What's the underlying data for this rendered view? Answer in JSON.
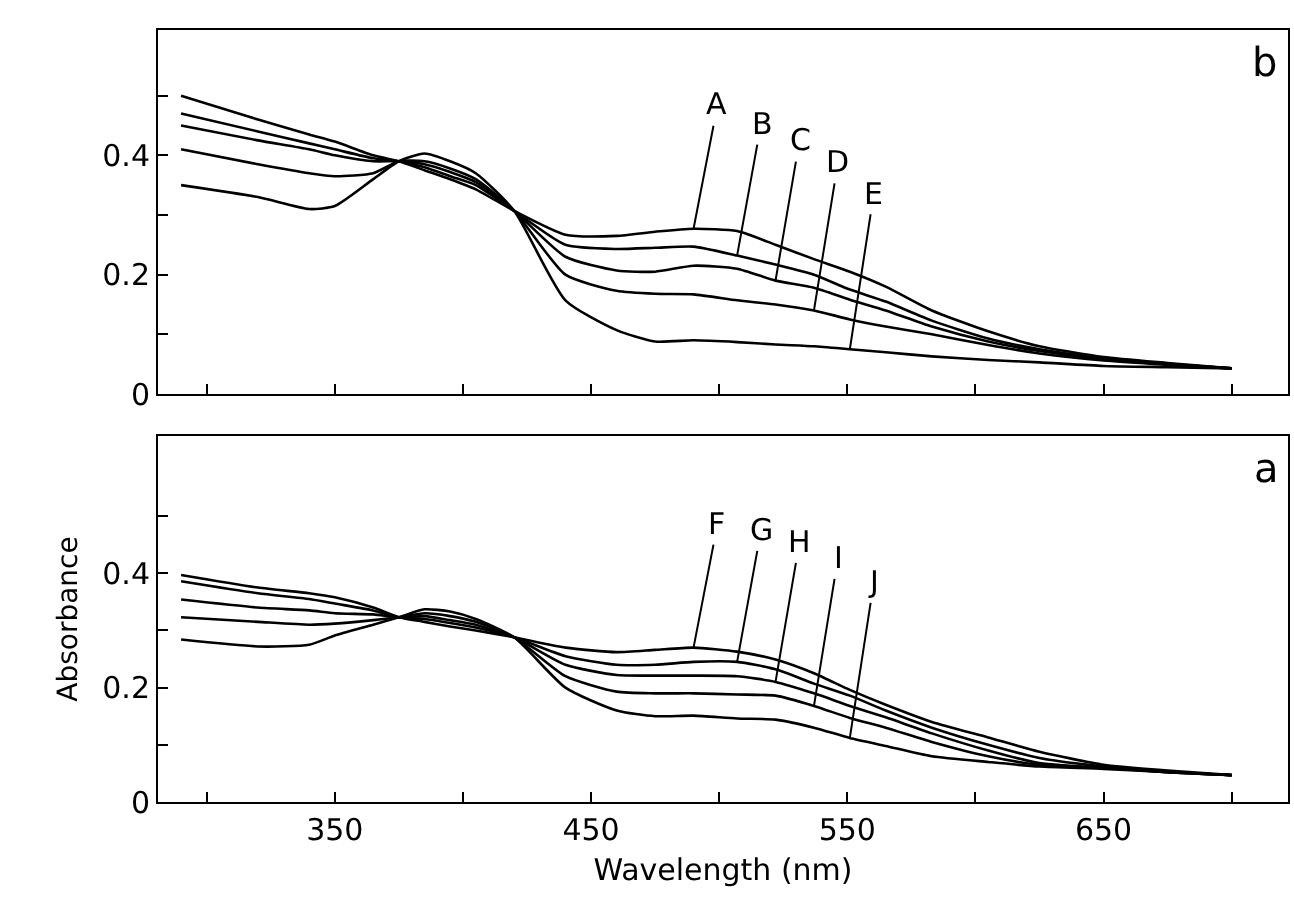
{
  "chart_data": [
    {
      "type": "line",
      "annotations": [
        "b",
        {
          "text": "A",
          "x": 490,
          "y": 0.277
        },
        {
          "text": "B",
          "x": 507,
          "y": 0.232
        },
        {
          "text": "C",
          "x": 522,
          "y": 0.19
        },
        {
          "text": "D",
          "x": 537,
          "y": 0.14
        },
        {
          "text": "E",
          "x": 551,
          "y": 0.075
        }
      ],
      "x": [
        290,
        320,
        340,
        350,
        365,
        375,
        385,
        395,
        405,
        420,
        440,
        460,
        475,
        490,
        507,
        522,
        537,
        551,
        565,
        583,
        605,
        625,
        650,
        675,
        700
      ],
      "series": [
        {
          "color": "#000000",
          "values": [
            0.5,
            0.46,
            0.435,
            0.423,
            0.4,
            0.39,
            0.375,
            0.36,
            0.343,
            0.307,
            0.267,
            0.265,
            0.272,
            0.277,
            0.273,
            0.25,
            0.226,
            0.205,
            0.18,
            0.14,
            0.105,
            0.08,
            0.062,
            0.052,
            0.043
          ]
        },
        {
          "color": "#000000",
          "values": [
            0.47,
            0.44,
            0.42,
            0.41,
            0.395,
            0.39,
            0.38,
            0.365,
            0.35,
            0.307,
            0.25,
            0.243,
            0.245,
            0.247,
            0.232,
            0.217,
            0.2,
            0.175,
            0.155,
            0.123,
            0.093,
            0.075,
            0.06,
            0.05,
            0.043
          ]
        },
        {
          "color": "#000000",
          "values": [
            0.45,
            0.425,
            0.41,
            0.4,
            0.39,
            0.39,
            0.385,
            0.372,
            0.355,
            0.307,
            0.23,
            0.207,
            0.205,
            0.215,
            0.21,
            0.19,
            0.178,
            0.158,
            0.14,
            0.113,
            0.088,
            0.072,
            0.058,
            0.05,
            0.043
          ]
        },
        {
          "color": "#000000",
          "values": [
            0.41,
            0.385,
            0.37,
            0.365,
            0.37,
            0.39,
            0.39,
            0.378,
            0.36,
            0.307,
            0.2,
            0.173,
            0.168,
            0.167,
            0.157,
            0.15,
            0.14,
            0.125,
            0.113,
            0.1,
            0.082,
            0.068,
            0.056,
            0.049,
            0.043
          ]
        },
        {
          "color": "#000000",
          "values": [
            0.35,
            0.33,
            0.31,
            0.315,
            0.36,
            0.39,
            0.403,
            0.39,
            0.37,
            0.307,
            0.157,
            0.107,
            0.088,
            0.09,
            0.087,
            0.083,
            0.08,
            0.075,
            0.07,
            0.063,
            0.057,
            0.053,
            0.047,
            0.045,
            0.043
          ]
        }
      ],
      "xlim": [
        281,
        722
      ],
      "ylim": [
        0,
        0.61
      ],
      "xticks": [
        {
          "value": 300,
          "label": null
        },
        350,
        {
          "value": 400,
          "label": null
        },
        450,
        {
          "value": 500,
          "label": null
        },
        550,
        {
          "value": 600,
          "label": null
        },
        650,
        {
          "value": 700,
          "label": null
        }
      ],
      "yticks": [
        0,
        {
          "value": 0.1,
          "label": null
        },
        0.2,
        {
          "value": 0.3,
          "label": null
        },
        0.4,
        {
          "value": 0.5,
          "label": null
        }
      ],
      "tick_labels": "y",
      "grid": false,
      "marker": "none",
      "line_style": "solid"
    },
    {
      "type": "line",
      "xlabel": "Wavelength (nm)",
      "ylabel": "Absorbance",
      "annotations": [
        "a",
        {
          "text": "F",
          "x": 490,
          "y": 0.27
        },
        {
          "text": "G",
          "x": 507,
          "y": 0.245
        },
        {
          "text": "H",
          "x": 522,
          "y": 0.21
        },
        {
          "text": "I",
          "x": 537,
          "y": 0.168
        },
        {
          "text": "J",
          "x": 551,
          "y": 0.112
        }
      ],
      "x": [
        290,
        320,
        340,
        350,
        365,
        375,
        385,
        395,
        405,
        420,
        440,
        460,
        475,
        490,
        507,
        522,
        537,
        551,
        565,
        583,
        605,
        625,
        650,
        675,
        700
      ],
      "series": [
        {
          "color": "#000000",
          "values": [
            0.397,
            0.375,
            0.365,
            0.358,
            0.34,
            0.323,
            0.315,
            0.307,
            0.3,
            0.288,
            0.27,
            0.262,
            0.266,
            0.27,
            0.263,
            0.249,
            0.225,
            0.196,
            0.17,
            0.14,
            0.113,
            0.088,
            0.065,
            0.055,
            0.047
          ]
        },
        {
          "color": "#000000",
          "values": [
            0.386,
            0.365,
            0.355,
            0.347,
            0.335,
            0.323,
            0.32,
            0.313,
            0.305,
            0.288,
            0.255,
            0.24,
            0.24,
            0.245,
            0.245,
            0.232,
            0.207,
            0.186,
            0.16,
            0.13,
            0.1,
            0.077,
            0.062,
            0.053,
            0.047
          ]
        },
        {
          "color": "#000000",
          "values": [
            0.354,
            0.34,
            0.335,
            0.33,
            0.328,
            0.323,
            0.325,
            0.318,
            0.31,
            0.288,
            0.24,
            0.222,
            0.221,
            0.221,
            0.22,
            0.21,
            0.19,
            0.168,
            0.148,
            0.12,
            0.09,
            0.068,
            0.06,
            0.052,
            0.047
          ]
        },
        {
          "color": "#000000",
          "values": [
            0.323,
            0.315,
            0.31,
            0.312,
            0.318,
            0.323,
            0.33,
            0.325,
            0.315,
            0.288,
            0.22,
            0.193,
            0.19,
            0.19,
            0.188,
            0.186,
            0.168,
            0.147,
            0.13,
            0.105,
            0.08,
            0.065,
            0.06,
            0.052,
            0.047
          ]
        },
        {
          "color": "#000000",
          "values": [
            0.284,
            0.272,
            0.275,
            0.291,
            0.31,
            0.323,
            0.337,
            0.333,
            0.32,
            0.288,
            0.2,
            0.16,
            0.15,
            0.151,
            0.146,
            0.144,
            0.13,
            0.112,
            0.098,
            0.08,
            0.07,
            0.062,
            0.058,
            0.052,
            0.047
          ]
        }
      ],
      "xlim": [
        281,
        722
      ],
      "ylim": [
        0,
        0.64
      ],
      "xticks": [
        {
          "value": 300,
          "label": null
        },
        350,
        {
          "value": 400,
          "label": null
        },
        450,
        {
          "value": 500,
          "label": null
        },
        550,
        {
          "value": 600,
          "label": null
        },
        650,
        {
          "value": 700,
          "label": null
        }
      ],
      "yticks": [
        0,
        {
          "value": 0.1,
          "label": null
        },
        0.2,
        {
          "value": 0.3,
          "label": null
        },
        0.4,
        {
          "value": 0.5,
          "label": null
        }
      ],
      "grid": false,
      "marker": "none",
      "line_style": "solid"
    }
  ]
}
